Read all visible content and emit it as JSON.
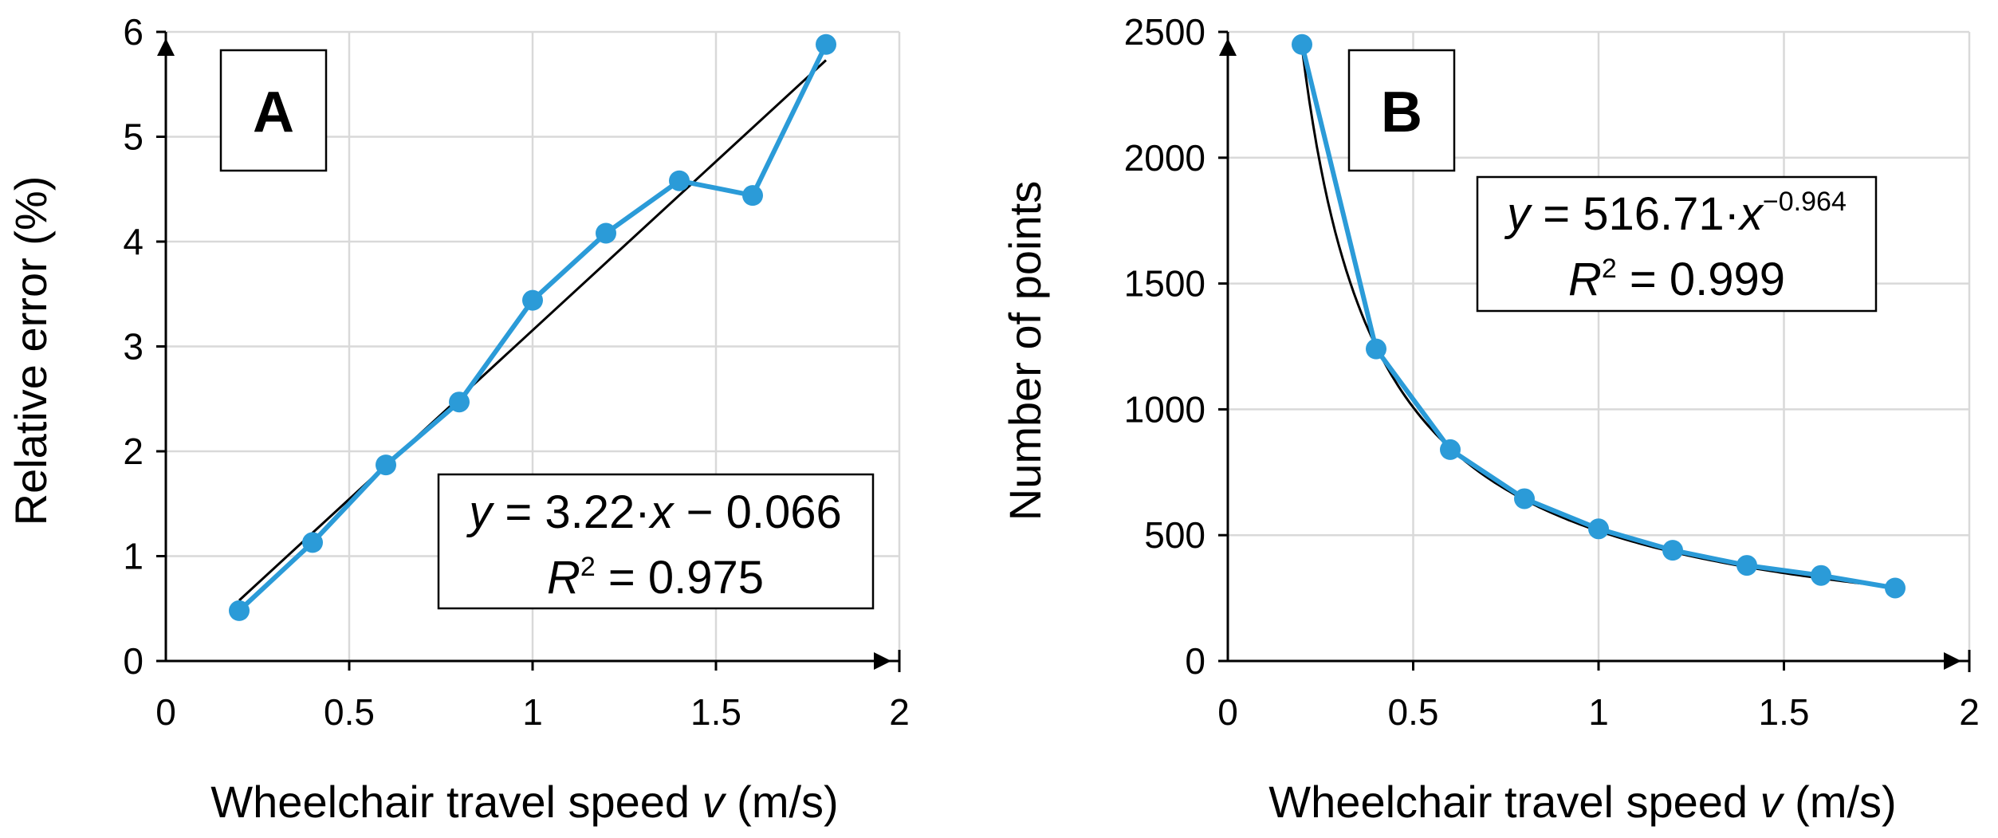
{
  "colors": {
    "series": "#2b9bd8",
    "fit": "#000000",
    "grid": "#d9d9d9"
  },
  "chart_data": [
    {
      "type": "line",
      "panel": "A",
      "xlabel": "Wheelchair travel speed",
      "xvar": "v",
      "xunit": "(m/s)",
      "ylabel": "Relative error (%)",
      "xlim": [
        0,
        2
      ],
      "ylim": [
        0,
        6
      ],
      "xticks": [
        0,
        0.5,
        1,
        1.5,
        2
      ],
      "yticks": [
        0,
        1,
        2,
        3,
        4,
        5,
        6
      ],
      "grid": true,
      "series": [
        {
          "name": "Relative error",
          "x": [
            0.2,
            0.4,
            0.6,
            0.8,
            1.0,
            1.2,
            1.4,
            1.6,
            1.8
          ],
          "y": [
            0.48,
            1.13,
            1.87,
            2.47,
            3.44,
            4.08,
            4.58,
            4.44,
            5.88
          ]
        }
      ],
      "fit": {
        "type": "linear",
        "a": 3.22,
        "b": -0.066,
        "x_range": [
          0.2,
          1.8
        ]
      },
      "equation": {
        "y": "y",
        "lhs_rest": " = 3.22·",
        "x": "x",
        "rhs": " − 0.066",
        "r": "R",
        "r_exp": "2",
        "r_rest": " = 0.975"
      },
      "legend_position": "bottom-right"
    },
    {
      "type": "line",
      "panel": "B",
      "xlabel": "Wheelchair travel speed",
      "xvar": "v",
      "xunit": "(m/s)",
      "ylabel": "Number of points",
      "xlim": [
        0,
        2
      ],
      "ylim": [
        0,
        2500
      ],
      "xticks": [
        0,
        0.5,
        1,
        1.5,
        2
      ],
      "yticks": [
        0,
        500,
        1000,
        1500,
        2000,
        2500
      ],
      "grid": true,
      "series": [
        {
          "name": "Number of points",
          "x": [
            0.2,
            0.4,
            0.6,
            0.8,
            1.0,
            1.2,
            1.4,
            1.6,
            1.8
          ],
          "y": [
            2450,
            1240,
            840,
            645,
            525,
            440,
            380,
            340,
            290
          ]
        }
      ],
      "fit": {
        "type": "power",
        "a": 516.71,
        "b": -0.964,
        "x_range": [
          0.2,
          1.8
        ]
      },
      "equation": {
        "y": "y",
        "lhs_rest": " = 516.71·",
        "x": "x",
        "exp": "−0.964",
        "r": "R",
        "r_exp": "2",
        "r_rest": " = 0.999"
      },
      "legend_position": "top-right"
    }
  ]
}
